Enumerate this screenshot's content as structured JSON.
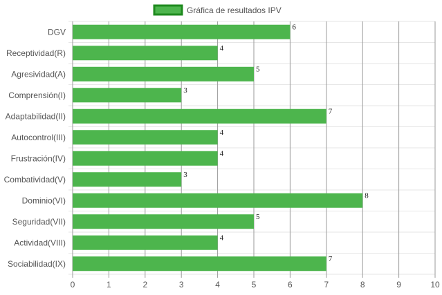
{
  "chart_data": {
    "type": "bar",
    "orientation": "horizontal",
    "categories": [
      "DGV",
      "Receptividad(R)",
      "Agresividad(A)",
      "Comprensión(I)",
      "Adaptabilidad(II)",
      "Autocontrol(III)",
      "Frustración(IV)",
      "Combatividad(V)",
      "Dominio(VI)",
      "Seguridad(VII)",
      "Actividad(VIII)",
      "Sociabilidad(IX)"
    ],
    "series": [
      {
        "name": "Gráfica de resultados IPV",
        "values": [
          6,
          4,
          5,
          3,
          7,
          4,
          4,
          3,
          8,
          5,
          4,
          7
        ],
        "color": "#4db54d",
        "border_color": "#1e8a1e"
      }
    ],
    "xlim": [
      0,
      10
    ],
    "x_ticks": [
      "0",
      "1",
      "2",
      "3",
      "4",
      "5",
      "6",
      "7",
      "8",
      "9",
      "10"
    ],
    "legend_position": "top-center",
    "grid": true,
    "grid_color": "#999999",
    "row_line_color": "#e6e6e6"
  }
}
